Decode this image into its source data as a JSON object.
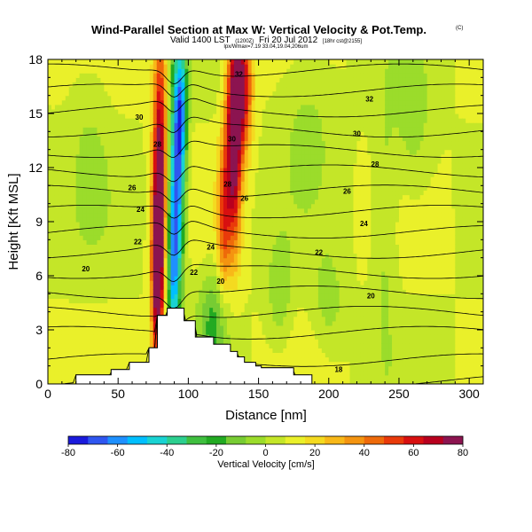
{
  "chart_data": {
    "type": "heatmap",
    "title": "Wind-Parallel Section at Max W: Vertical Velocity & Pot.Temp.",
    "title_mark": "(C)",
    "subtitle_main": "Valid 1400 LST",
    "subtitle_paren": "(1200Z)",
    "subtitle_date": "Fri 20 Jul 2012",
    "subtitle_tail": "[18hr cst@2155]",
    "subtitle_small": "lpx/Wmax=7.19 33.04,19.04,206um",
    "xlabel": "Distance [nm]",
    "ylabel": "Height [Kft MSL]",
    "xlim": [
      0,
      310
    ],
    "ylim": [
      0,
      18
    ],
    "x_ticks": [
      0,
      50,
      100,
      150,
      200,
      250,
      300
    ],
    "y_ticks": [
      0,
      3,
      6,
      9,
      12,
      15,
      18
    ],
    "colorbar": {
      "label": "Vertical Velocity [cm/s]",
      "ticks": [
        -80,
        -60,
        -40,
        -20,
        0,
        20,
        40,
        60,
        80
      ],
      "range": [
        -80,
        80
      ],
      "colors": [
        "#1a1adc",
        "#2f56f0",
        "#1e90ff",
        "#00bfff",
        "#19d3d3",
        "#2ccf8f",
        "#3fbf3f",
        "#22aa22",
        "#77cc33",
        "#9bdc2b",
        "#c4e628",
        "#eaf02a",
        "#f4da20",
        "#f8b818",
        "#f49410",
        "#ee6a0a",
        "#e93a0a",
        "#d81010",
        "#b8001e",
        "#8c1450"
      ]
    },
    "terrain": {
      "x": [
        0,
        20,
        20,
        45,
        45,
        58,
        58,
        72,
        72,
        78,
        78,
        85,
        85,
        97,
        97,
        105,
        105,
        118,
        118,
        130,
        130,
        135,
        135,
        140,
        140,
        148,
        148,
        152,
        152,
        175,
        175,
        188,
        188,
        310
      ],
      "height": [
        0,
        0,
        0.5,
        0.5,
        0.8,
        0.8,
        1.2,
        1.2,
        2.0,
        2.0,
        3.8,
        3.8,
        4.2,
        4.2,
        3.5,
        3.5,
        2.6,
        2.6,
        2.2,
        2.2,
        1.8,
        1.8,
        1.5,
        1.5,
        1.2,
        1.2,
        1.0,
        1.0,
        0.9,
        0.9,
        0.5,
        0.5,
        0.0,
        0.0
      ]
    },
    "velocity_features": [
      {
        "x": 92,
        "height": 11.5,
        "w": -70,
        "sx": 4,
        "sz": 4.5
      },
      {
        "x": 89,
        "height": 6.0,
        "w": -45,
        "sx": 3,
        "sz": 3
      },
      {
        "x": 95,
        "height": 15.5,
        "w": -40,
        "sx": 3,
        "sz": 2.5
      },
      {
        "x": 78,
        "height": 6.0,
        "w": 75,
        "sx": 3,
        "sz": 4
      },
      {
        "x": 80,
        "height": 13.0,
        "w": 60,
        "sx": 3.5,
        "sz": 5
      },
      {
        "x": 132,
        "height": 13.0,
        "w": 70,
        "sx": 4,
        "sz": 4
      },
      {
        "x": 138,
        "height": 16.5,
        "w": 65,
        "sx": 5,
        "sz": 2.5
      },
      {
        "x": 125,
        "height": 9.0,
        "w": 35,
        "sx": 3,
        "sz": 3
      },
      {
        "x": 118,
        "height": 3.5,
        "w": -25,
        "sx": 8,
        "sz": 2
      },
      {
        "x": 165,
        "height": 5.0,
        "w": -15,
        "sx": 6,
        "sz": 2
      },
      {
        "x": 200,
        "height": 4.5,
        "w": -12,
        "sx": 8,
        "sz": 2
      },
      {
        "x": 240,
        "height": 9.0,
        "w": -12,
        "sx": 6,
        "sz": 5
      },
      {
        "x": 260,
        "height": 14.0,
        "w": -12,
        "sx": 10,
        "sz": 3
      },
      {
        "x": 30,
        "height": 13.0,
        "w": -8,
        "sx": 10,
        "sz": 4
      },
      {
        "x": 185,
        "height": 15.0,
        "w": -10,
        "sx": 14,
        "sz": 3
      }
    ],
    "contour_labels": [
      {
        "x": 65,
        "height": 14.8,
        "text": "30"
      },
      {
        "x": 78,
        "height": 13.3,
        "text": "28"
      },
      {
        "x": 60,
        "height": 10.9,
        "text": "26"
      },
      {
        "x": 66,
        "height": 9.7,
        "text": "24"
      },
      {
        "x": 64,
        "height": 7.9,
        "text": "22"
      },
      {
        "x": 27,
        "height": 6.4,
        "text": "20"
      },
      {
        "x": 136,
        "height": 17.2,
        "text": "32"
      },
      {
        "x": 131,
        "height": 13.6,
        "text": "30"
      },
      {
        "x": 128,
        "height": 11.1,
        "text": "28"
      },
      {
        "x": 140,
        "height": 10.3,
        "text": "26"
      },
      {
        "x": 116,
        "height": 7.6,
        "text": "24"
      },
      {
        "x": 104,
        "height": 6.2,
        "text": "22"
      },
      {
        "x": 123,
        "height": 5.7,
        "text": "20"
      },
      {
        "x": 229,
        "height": 15.8,
        "text": "32"
      },
      {
        "x": 220,
        "height": 13.9,
        "text": "30"
      },
      {
        "x": 233,
        "height": 12.2,
        "text": "28"
      },
      {
        "x": 213,
        "height": 10.7,
        "text": "26"
      },
      {
        "x": 225,
        "height": 8.9,
        "text": "24"
      },
      {
        "x": 193,
        "height": 7.3,
        "text": "22"
      },
      {
        "x": 230,
        "height": 4.9,
        "text": "20"
      },
      {
        "x": 207,
        "height": 0.8,
        "text": "18"
      }
    ],
    "theta_levels": [
      18,
      19,
      20,
      21,
      22,
      23,
      24,
      25,
      26,
      27,
      28,
      29,
      30,
      31,
      32,
      33
    ]
  }
}
